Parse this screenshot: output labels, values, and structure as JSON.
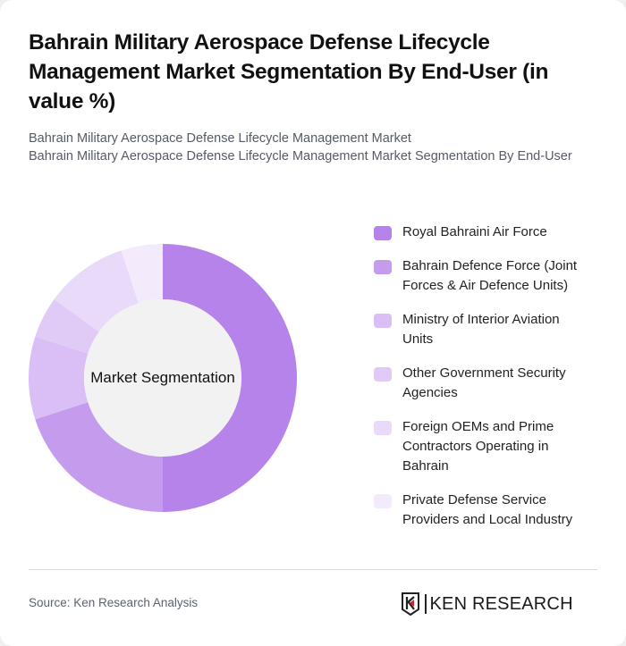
{
  "header": {
    "title": "Bahrain Military Aerospace Defense Lifecycle Management Market Segmentation By End-User (in value %)",
    "subtitle_line1": "Bahrain Military Aerospace Defense Lifecycle Management Market",
    "subtitle_line2": "Bahrain Military Aerospace Defense Lifecycle Management Market Segmentation By End-User"
  },
  "chart": {
    "center_label": "Market Segmentation"
  },
  "legend": {
    "items": [
      {
        "label": "Royal Bahraini Air Force",
        "color": "#b583ea"
      },
      {
        "label": "Bahrain Defence Force (Joint Forces & Air Defence Units)",
        "color": "#c49bed"
      },
      {
        "label": "Ministry of Interior Aviation Units",
        "color": "#d9bff5"
      },
      {
        "label": "Other Government Security Agencies",
        "color": "#e0cbf6"
      },
      {
        "label": "Foreign OEMs and Prime Contractors Operating in Bahrain",
        "color": "#e9daf9"
      },
      {
        "label": "Private Defense Service Providers and Local Industry",
        "color": "#f3ebfc"
      }
    ]
  },
  "footer": {
    "source": "Source: Ken Research Analysis",
    "logo_text": "KEN RESEARCH"
  },
  "chart_data": {
    "type": "pie",
    "variant": "donut",
    "title": "Bahrain Military Aerospace Defense Lifecycle Management Market Segmentation By End-User (in value %)",
    "center_label": "Market Segmentation",
    "categories": [
      "Royal Bahraini Air Force",
      "Bahrain Defence Force (Joint Forces & Air Defence Units)",
      "Ministry of Interior Aviation Units",
      "Other Government Security Agencies",
      "Foreign OEMs and Prime Contractors Operating in Bahrain",
      "Private Defense Service Providers and Local Industry"
    ],
    "values": [
      50,
      20,
      10,
      5,
      10,
      5
    ],
    "colors": [
      "#b583ea",
      "#c49bed",
      "#d9bff5",
      "#e0cbf6",
      "#e9daf9",
      "#f3ebfc"
    ],
    "legend_position": "right",
    "unit": "%"
  }
}
